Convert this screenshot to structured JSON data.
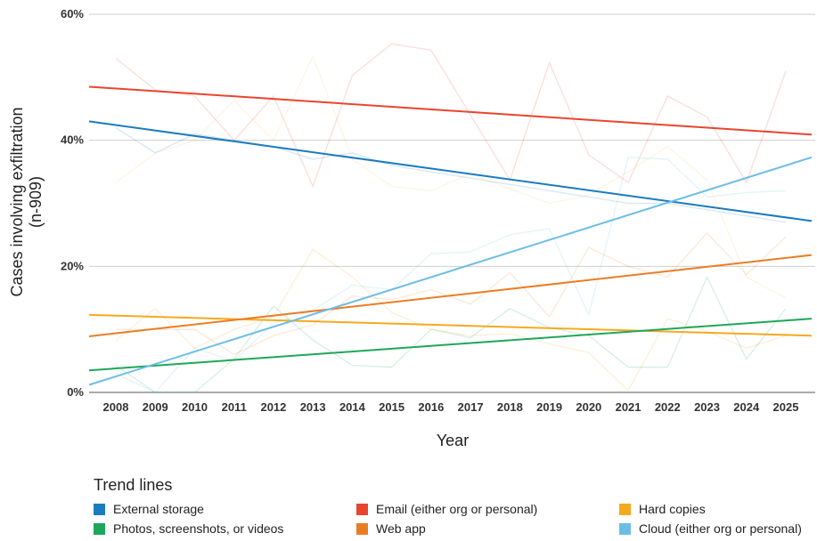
{
  "chart_data": {
    "type": "line",
    "title": "",
    "xlabel": "Year",
    "ylabel_line1": "Cases involving exfiltration",
    "ylabel_line2": "(n-909)",
    "x": [
      "2008",
      "2009",
      "2010",
      "2011",
      "2012",
      "2013",
      "2014",
      "2015",
      "2016",
      "2017",
      "2018",
      "2019",
      "2020",
      "2021",
      "2022",
      "2023",
      "2024",
      "2025"
    ],
    "ylim": [
      0,
      60
    ],
    "yticks": [
      "0%",
      "20%",
      "40%",
      "60%"
    ],
    "ytick_values": [
      0,
      20,
      40,
      60
    ],
    "grid": true,
    "legend_title": "Trend lines",
    "legend_position": "bottom",
    "series": [
      {
        "name": "External storage",
        "color": "#1a7bbf",
        "trend": [
          43.0,
          27.2
        ],
        "values": [
          42,
          38,
          41,
          40,
          39,
          37,
          38,
          36,
          35,
          34,
          33,
          32,
          31,
          30,
          30,
          29,
          28,
          27
        ]
      },
      {
        "name": "Email (either org or personal)",
        "color": "#e8452f",
        "trend": [
          48.5,
          40.9
        ],
        "values": [
          53,
          48,
          47,
          40,
          47,
          32.7,
          50.3,
          55.3,
          54.3,
          44,
          33.7,
          52.3,
          37.7,
          33.3,
          47,
          43.7,
          33.3,
          51
        ]
      },
      {
        "name": "Hard copies",
        "color": "#f5a91f",
        "trend": [
          12.3,
          9.0
        ],
        "values": [
          8.3,
          13.3,
          7.0,
          10.0,
          12.0,
          22.7,
          18.3,
          12.7,
          10.0,
          9.0,
          9.3,
          7.7,
          6.3,
          0.3,
          11.7,
          9.7,
          7.0,
          9.0
        ]
      },
      {
        "name": "Photos, screenshots, or videos",
        "color": "#1ea75a",
        "trend": [
          3.5,
          11.7
        ],
        "values": [
          4.3,
          0.0,
          0.0,
          5.3,
          13.7,
          8.3,
          4.3,
          4.0,
          10.0,
          8.7,
          13.3,
          10.3,
          9.0,
          4.0,
          4.0,
          18.3,
          5.3,
          13.3
        ]
      },
      {
        "name": "Web app",
        "color": "#ea7d24",
        "trend": [
          8.9,
          21.8
        ],
        "values": [
          10.0,
          10.0,
          10.0,
          6.0,
          9.0,
          10.7,
          15.3,
          14.7,
          16.3,
          14.0,
          19.0,
          12.0,
          23.0,
          20.0,
          18.3,
          25.3,
          18.7,
          24.7
        ]
      },
      {
        "name": "Cloud (either org or personal)",
        "color": "#6cbde6",
        "trend": [
          1.2,
          37.3
        ],
        "values": [
          3.0,
          0.0,
          7.0,
          5.0,
          11.0,
          13.0,
          17.0,
          16.3,
          22.0,
          22.3,
          25.0,
          26.0,
          12.3,
          37.3,
          37.0,
          31.0,
          31.7,
          32.0
        ]
      },
      {
        "name": "",
        "color": "#f6c66a",
        "values": [
          33.3,
          38.0,
          40.0,
          46.3,
          40.0,
          53.3,
          37.0,
          32.7,
          32.0,
          34.7,
          32.3,
          30.0,
          31.3,
          35.0,
          39.0,
          33.7,
          18.3,
          15.0
        ]
      }
    ]
  },
  "legend_layout_order": [
    0,
    1,
    2,
    3,
    4,
    5
  ]
}
